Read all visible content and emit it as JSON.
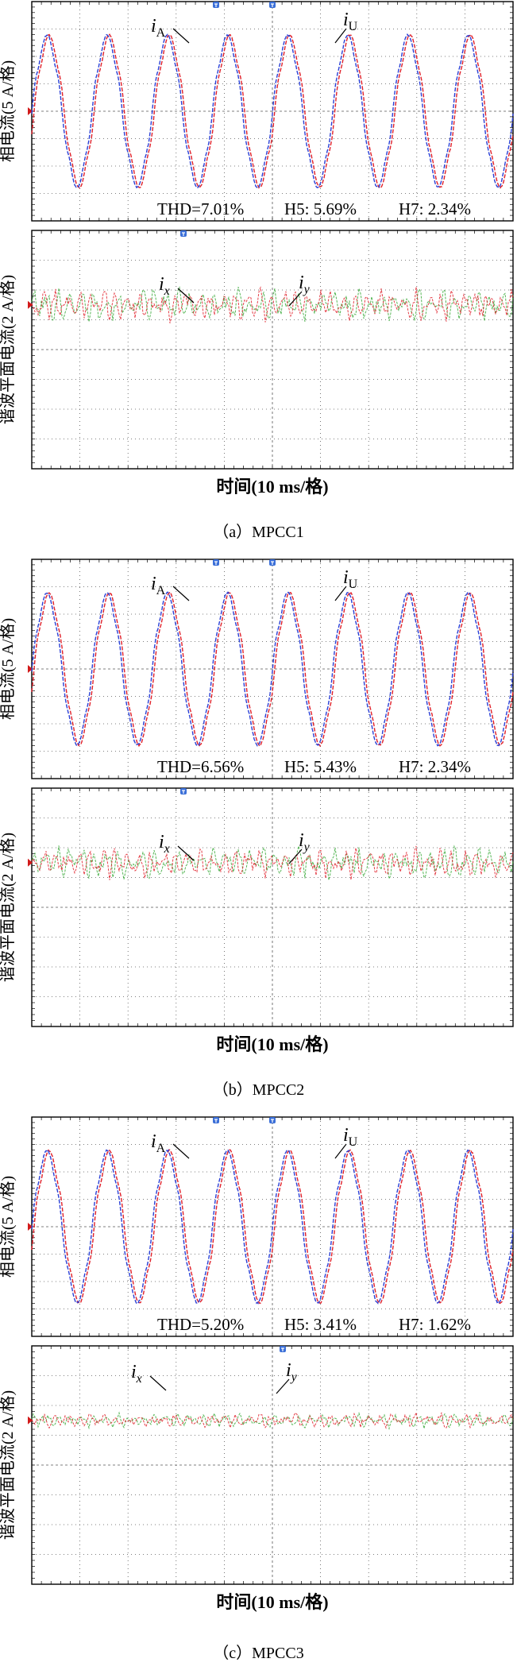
{
  "colors": {
    "phase_a": "#2a3fd6",
    "phase_u": "#e0202a",
    "harm_x": "#e0202a",
    "harm_y": "#3aaa3a",
    "grid": "#555555",
    "marker": "#d21a1a",
    "trigger": "#3b6fd8"
  },
  "chart_data": [
    {
      "type": "line",
      "caption": "（a）MPCC1",
      "xlabel": "时间(10 ms/格)",
      "top": {
        "ylabel": "相电流(5 A/格)",
        "series": [
          {
            "name": "iA",
            "label_main": "i",
            "label_sub": "A",
            "amplitude_div": 2.7,
            "cycles_per_div": 0.8
          },
          {
            "name": "iU",
            "label_main": "i",
            "label_sub": "U",
            "amplitude_div": 2.7,
            "cycles_per_div": 0.8
          }
        ],
        "annotations": {
          "thd": "THD=7.01%",
          "h5": "H5: 5.69%",
          "h7": "H7: 2.34%"
        }
      },
      "bottom": {
        "ylabel": "谐波平面电流(2 A/格)",
        "series": [
          {
            "name": "ix",
            "label_main": "i",
            "label_sub": "x",
            "amplitude_div": 0.45
          },
          {
            "name": "iy",
            "label_main": "i",
            "label_sub": "y",
            "amplitude_div": 0.45
          }
        ]
      }
    },
    {
      "type": "line",
      "caption": "（b）MPCC2",
      "xlabel": "时间(10 ms/格)",
      "top": {
        "ylabel": "相电流(5 A/格)",
        "series": [
          {
            "name": "iA",
            "label_main": "i",
            "label_sub": "A",
            "amplitude_div": 2.7,
            "cycles_per_div": 0.8
          },
          {
            "name": "iU",
            "label_main": "i",
            "label_sub": "U",
            "amplitude_div": 2.7,
            "cycles_per_div": 0.8
          }
        ],
        "annotations": {
          "thd": "THD=6.56%",
          "h5": "H5: 5.43%",
          "h7": "H7: 2.34%"
        }
      },
      "bottom": {
        "ylabel": "谐波平面电流(2 A/格)",
        "series": [
          {
            "name": "ix",
            "label_main": "i",
            "label_sub": "x",
            "amplitude_div": 0.42
          },
          {
            "name": "iy",
            "label_main": "i",
            "label_sub": "y",
            "amplitude_div": 0.42
          }
        ]
      }
    },
    {
      "type": "line",
      "caption": "（c）MPCC3",
      "xlabel": "时间(10 ms/格)",
      "top": {
        "ylabel": "相电流(5 A/格)",
        "series": [
          {
            "name": "iA",
            "label_main": "i",
            "label_sub": "A",
            "amplitude_div": 2.7,
            "cycles_per_div": 0.8
          },
          {
            "name": "iU",
            "label_main": "i",
            "label_sub": "U",
            "amplitude_div": 2.7,
            "cycles_per_div": 0.8
          }
        ],
        "annotations": {
          "thd": "THD=5.20%",
          "h5": "H5: 3.41%",
          "h7": "H7: 1.62%"
        }
      },
      "bottom": {
        "ylabel": "谐波平面电流(2 A/格)",
        "series": [
          {
            "name": "ix",
            "label_main": "i",
            "label_sub": "x",
            "amplitude_div": 0.2
          },
          {
            "name": "iy",
            "label_main": "i",
            "label_sub": "y",
            "amplitude_div": 0.2
          }
        ]
      }
    }
  ]
}
